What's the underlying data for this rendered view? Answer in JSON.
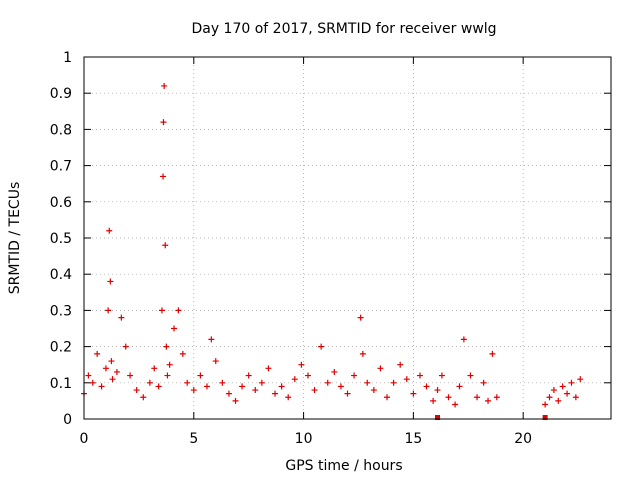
{
  "chart_data": {
    "type": "scatter",
    "title": "Day 170 of 2017, SRMTID for receiver wwlg",
    "xlabel": "GPS time / hours",
    "ylabel": "SRMTID / TECUs",
    "xlim": [
      0,
      24
    ],
    "ylim": [
      0,
      1
    ],
    "xticks": [
      0,
      5,
      10,
      15,
      20
    ],
    "xtick_labels": [
      "0",
      "5",
      "10",
      "15",
      "20"
    ],
    "yticks": [
      0,
      0.1,
      0.2,
      0.3,
      0.4,
      0.5,
      0.6,
      0.7,
      0.8,
      0.9,
      1
    ],
    "ytick_labels": [
      "0",
      "0.1",
      "0.2",
      "0.3",
      "0.4",
      "0.5",
      "0.6",
      "0.7",
      "0.8",
      "0.9",
      "1"
    ],
    "grid": true,
    "marker": "+",
    "marker_color": "#e00000",
    "series": [
      {
        "name": "SRMTID",
        "x": [
          0.0,
          0.2,
          0.4,
          0.6,
          0.8,
          1.0,
          1.1,
          1.15,
          1.2,
          1.25,
          1.3,
          1.5,
          1.7,
          1.9,
          2.1,
          2.4,
          2.7,
          3.0,
          3.2,
          3.4,
          3.55,
          3.6,
          3.62,
          3.65,
          3.7,
          3.75,
          3.8,
          3.9,
          4.1,
          4.3,
          4.5,
          4.7,
          5.0,
          5.3,
          5.6,
          5.8,
          6.0,
          6.3,
          6.6,
          6.9,
          7.2,
          7.5,
          7.8,
          8.1,
          8.4,
          8.7,
          9.0,
          9.3,
          9.6,
          9.9,
          10.2,
          10.5,
          10.8,
          11.1,
          11.4,
          11.7,
          12.0,
          12.3,
          12.6,
          12.7,
          12.9,
          13.2,
          13.5,
          13.8,
          14.1,
          14.4,
          14.7,
          15.0,
          15.3,
          15.6,
          15.9,
          16.1,
          16.3,
          16.6,
          16.9,
          17.1,
          17.3,
          17.6,
          17.9,
          18.2,
          18.4,
          18.6,
          18.8,
          21.0,
          21.2,
          21.4,
          21.6,
          21.8,
          22.0,
          22.2,
          22.4,
          22.6
        ],
        "values": [
          0.07,
          0.12,
          0.1,
          0.18,
          0.09,
          0.14,
          0.3,
          0.52,
          0.38,
          0.16,
          0.11,
          0.13,
          0.28,
          0.2,
          0.12,
          0.08,
          0.06,
          0.1,
          0.14,
          0.09,
          0.3,
          0.67,
          0.82,
          0.92,
          0.48,
          0.2,
          0.12,
          0.15,
          0.25,
          0.3,
          0.18,
          0.1,
          0.08,
          0.12,
          0.09,
          0.22,
          0.16,
          0.1,
          0.07,
          0.05,
          0.09,
          0.12,
          0.08,
          0.1,
          0.14,
          0.07,
          0.09,
          0.06,
          0.11,
          0.15,
          0.12,
          0.08,
          0.2,
          0.1,
          0.13,
          0.09,
          0.07,
          0.12,
          0.28,
          0.18,
          0.1,
          0.08,
          0.14,
          0.06,
          0.1,
          0.15,
          0.11,
          0.07,
          0.12,
          0.09,
          0.05,
          0.08,
          0.12,
          0.06,
          0.04,
          0.09,
          0.22,
          0.12,
          0.06,
          0.1,
          0.05,
          0.18,
          0.06,
          0.04,
          0.06,
          0.08,
          0.05,
          0.09,
          0.07,
          0.1,
          0.06,
          0.11
        ]
      }
    ],
    "markers_on_axis": [
      {
        "x": 16.1,
        "y": 0
      },
      {
        "x": 21.0,
        "y": 0
      }
    ]
  }
}
